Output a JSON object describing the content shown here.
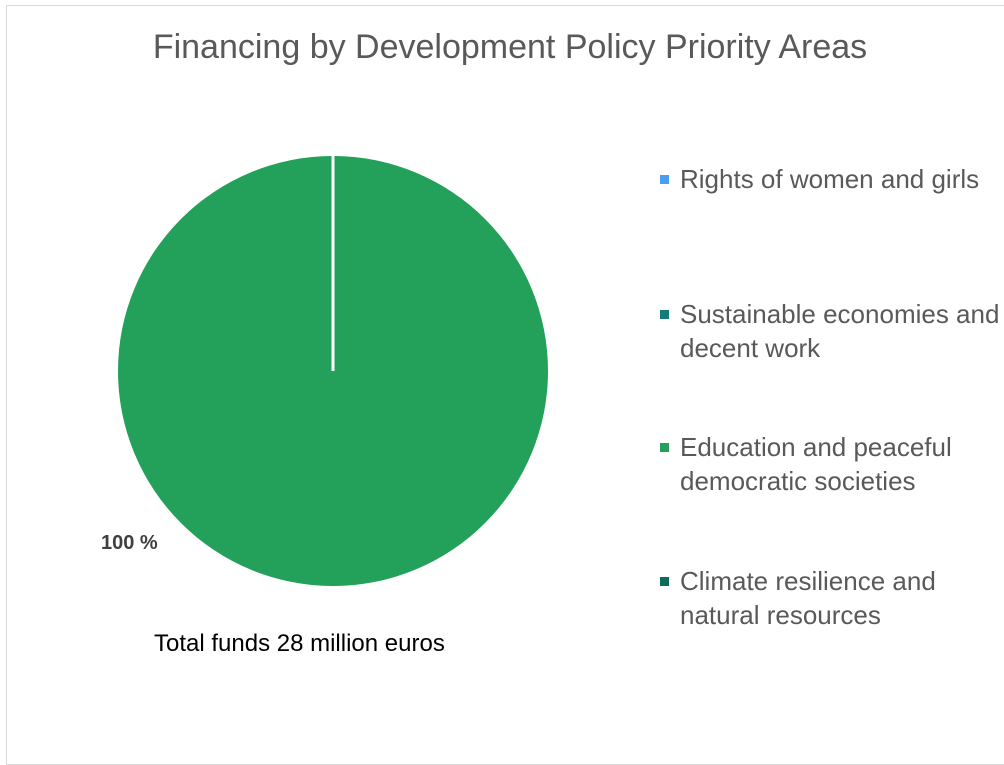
{
  "chart_data": {
    "type": "pie",
    "title": "Financing by Development Policy Priority Areas",
    "caption": "Total funds 28 million euros",
    "categories": [
      "Rights of women and girls",
      "Sustainable economies and decent work",
      "Education and peaceful democratic societies",
      "Climate resilience and natural resources"
    ],
    "values": [
      0,
      0,
      100,
      0
    ],
    "colors": [
      "#4a9ef0",
      "#147a7a",
      "#23a05a",
      "#0c6b5c"
    ],
    "data_labels": [
      "",
      "",
      "100 %",
      ""
    ],
    "legend_position": "right"
  }
}
